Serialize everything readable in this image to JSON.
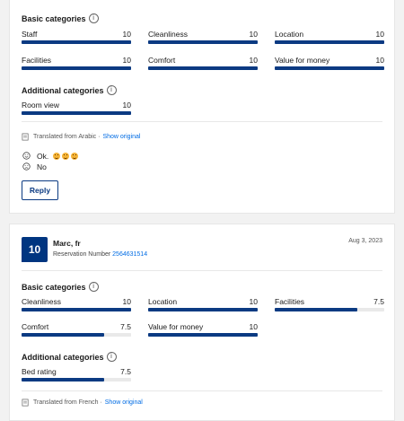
{
  "review1": {
    "basic_title": "Basic categories",
    "basic": [
      {
        "label": "Staff",
        "value": "10",
        "fraction": 1.0
      },
      {
        "label": "Cleanliness",
        "value": "10",
        "fraction": 1.0
      },
      {
        "label": "Location",
        "value": "10",
        "fraction": 1.0
      },
      {
        "label": "Facilities",
        "value": "10",
        "fraction": 1.0
      },
      {
        "label": "Comfort",
        "value": "10",
        "fraction": 1.0
      },
      {
        "label": "Value for money",
        "value": "10",
        "fraction": 1.0
      }
    ],
    "additional_title": "Additional categories",
    "additional": [
      {
        "label": "Room view",
        "value": "10",
        "fraction": 1.0
      }
    ],
    "translated_text": "Translated from Arabic ·",
    "show_original": "Show original",
    "positive_text": "Ok.",
    "negative_text": "No",
    "reply_label": "Reply"
  },
  "review2": {
    "score": "10",
    "reviewer": "Marc, fr",
    "reservation_label": "Reservation Number",
    "reservation_number": "2564631514",
    "date": "Aug 3, 2023",
    "basic_title": "Basic categories",
    "basic": [
      {
        "label": "Cleanliness",
        "value": "10",
        "fraction": 1.0
      },
      {
        "label": "Location",
        "value": "10",
        "fraction": 1.0
      },
      {
        "label": "Facilities",
        "value": "7.5",
        "fraction": 0.75
      },
      {
        "label": "Comfort",
        "value": "7.5",
        "fraction": 0.75
      },
      {
        "label": "Value for money",
        "value": "10",
        "fraction": 1.0
      }
    ],
    "additional_title": "Additional categories",
    "additional": [
      {
        "label": "Bed rating",
        "value": "7.5",
        "fraction": 0.75
      }
    ],
    "translated_text": "Translated from French ·",
    "show_original": "Show original"
  },
  "colors": {
    "accent": "#0b3a82",
    "badge": "#003580",
    "link": "#006ce4"
  }
}
